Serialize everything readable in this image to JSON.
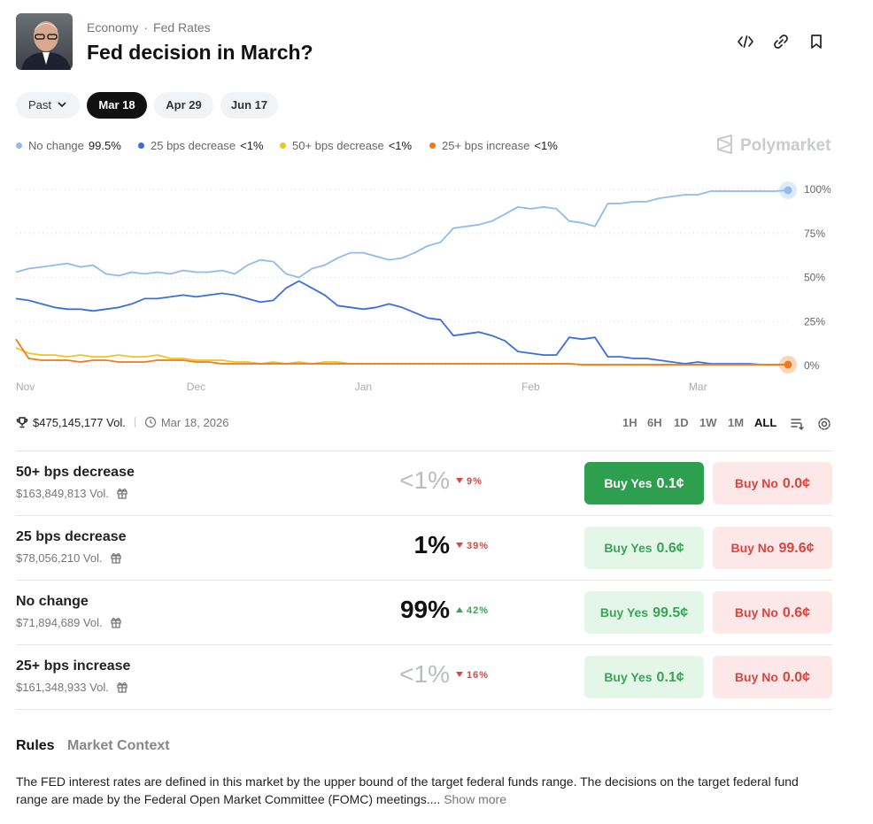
{
  "header": {
    "breadcrumbs": [
      "Economy",
      "Fed Rates"
    ],
    "title": "Fed decision in March?"
  },
  "date_tabs": {
    "past": "Past",
    "dates": [
      "Mar 18",
      "Apr 29",
      "Jun 17"
    ],
    "active": 0
  },
  "brand": "Polymarket",
  "chart_data": {
    "type": "line",
    "categories": [
      "Nov",
      null,
      null,
      null,
      null,
      null,
      null,
      null,
      null,
      null,
      null,
      null,
      null,
      null,
      "Dec",
      null,
      null,
      null,
      null,
      null,
      null,
      null,
      null,
      null,
      null,
      null,
      null,
      "Jan",
      null,
      null,
      null,
      null,
      null,
      null,
      null,
      null,
      null,
      null,
      null,
      null,
      "Feb",
      null,
      null,
      null,
      null,
      null,
      null,
      null,
      null,
      null,
      null,
      null,
      null,
      "Mar",
      null,
      null,
      null,
      null,
      null,
      null,
      null
    ],
    "series": [
      {
        "name": "No change",
        "current": "99.5%",
        "color": "#8fbbed",
        "values": [
          53,
          55,
          56,
          57,
          58,
          56,
          57,
          52,
          51,
          53,
          52,
          53,
          52,
          54,
          53,
          53,
          54,
          52,
          57,
          60,
          59,
          52,
          50,
          55,
          57,
          61,
          64,
          64,
          62,
          60,
          61,
          64,
          68,
          70,
          78,
          79,
          80,
          82,
          86,
          90,
          89,
          90,
          89,
          82,
          81,
          79,
          92,
          92,
          93,
          93,
          95,
          96,
          97,
          97,
          99,
          99,
          99,
          99,
          99,
          99,
          99.5
        ]
      },
      {
        "name": "25 bps decrease",
        "current": "<1%",
        "color": "#3b6de0",
        "values": [
          38,
          37,
          35,
          33,
          32,
          32,
          31,
          32,
          33,
          35,
          38,
          38,
          39,
          40,
          39,
          40,
          41,
          40,
          38,
          36,
          37,
          44,
          48,
          44,
          40,
          34,
          33,
          32,
          33,
          35,
          33,
          30,
          27,
          26,
          17,
          18,
          19,
          17,
          14,
          8,
          7,
          6,
          6,
          16,
          15,
          16,
          5,
          5,
          4,
          4,
          3,
          2,
          1,
          2,
          1,
          1,
          1,
          1,
          0.5,
          0.5,
          0.5
        ]
      },
      {
        "name": "50+ bps decrease",
        "current": "<1%",
        "color": "#f2c418",
        "values": [
          10,
          7,
          6,
          6,
          5,
          6,
          5,
          5,
          6,
          5,
          5,
          6,
          4,
          4,
          3,
          3,
          3,
          2,
          2,
          1,
          2,
          1,
          2,
          1,
          2,
          2,
          1,
          1,
          1,
          1,
          1,
          1,
          1,
          1,
          1,
          1,
          1,
          1,
          1,
          1,
          1,
          1,
          1,
          1,
          0.5,
          0.5,
          0.5,
          0.5,
          0.5,
          0.5,
          0.5,
          0.5,
          0.5,
          0.5,
          0.5,
          0.5,
          0.5,
          0.5,
          0.5,
          0.5,
          0.5
        ]
      },
      {
        "name": "25+ bps increase",
        "current": "<1%",
        "color": "#ef7a1c",
        "values": [
          15,
          4,
          3,
          3,
          3,
          2,
          3,
          3,
          2,
          2,
          2,
          3,
          3,
          3,
          2,
          2,
          1,
          1,
          1,
          1,
          1,
          1,
          1,
          1,
          1,
          1,
          1,
          1,
          1,
          1,
          1,
          1,
          1,
          1,
          1,
          1,
          1,
          1,
          1,
          1,
          1,
          1,
          1,
          1,
          0.5,
          0.5,
          0.5,
          0.5,
          0.5,
          0.5,
          0.5,
          0.5,
          0.5,
          0.5,
          0.5,
          0.5,
          0.5,
          0.5,
          0.5,
          0.5,
          0.5
        ]
      }
    ],
    "ylim": [
      0,
      100
    ],
    "yticks": [
      {
        "value": 0,
        "label": "0%"
      },
      {
        "value": 25,
        "label": "25%"
      },
      {
        "value": 50,
        "label": "50%"
      },
      {
        "value": 75,
        "label": "75%"
      },
      {
        "value": 100,
        "label": "100%"
      }
    ],
    "grid": true
  },
  "stats": {
    "volume": "$475,145,177 Vol.",
    "end_date": "Mar 18, 2026"
  },
  "timeframes": {
    "options": [
      "1H",
      "6H",
      "1D",
      "1W",
      "1M",
      "ALL"
    ],
    "active": 5
  },
  "outcomes": [
    {
      "name": "50+ bps decrease",
      "volume": "$163,849,813 Vol.",
      "chance": "<1%",
      "change": "9%",
      "direction": "down",
      "buy_yes_label": "Buy Yes",
      "buy_yes": "0.1¢",
      "buy_no_label": "Buy No",
      "buy_no": "0.0¢",
      "selected": true
    },
    {
      "name": "25 bps decrease",
      "volume": "$78,056,210 Vol.",
      "chance": "1%",
      "change": "39%",
      "direction": "down",
      "buy_yes_label": "Buy Yes",
      "buy_yes": "0.6¢",
      "buy_no_label": "Buy No",
      "buy_no": "99.6¢",
      "selected": false
    },
    {
      "name": "No change",
      "volume": "$71,894,689 Vol.",
      "chance": "99%",
      "change": "42%",
      "direction": "up",
      "buy_yes_label": "Buy Yes",
      "buy_yes": "99.5¢",
      "buy_no_label": "Buy No",
      "buy_no": "0.6¢",
      "selected": false
    },
    {
      "name": "25+ bps increase",
      "volume": "$161,348,933 Vol.",
      "chance": "<1%",
      "change": "16%",
      "direction": "down",
      "buy_yes_label": "Buy Yes",
      "buy_yes": "0.1¢",
      "buy_no_label": "Buy No",
      "buy_no": "0.0¢",
      "selected": false
    }
  ],
  "info_tabs": {
    "items": [
      "Rules",
      "Market Context"
    ],
    "active": 0
  },
  "rules": {
    "text": "The FED interest rates are defined in this market by the upper bound of the target federal funds range. The decisions on the target federal fund range are made by the Federal Open Market Committee (FOMC) meetings....",
    "more": "Show more"
  }
}
